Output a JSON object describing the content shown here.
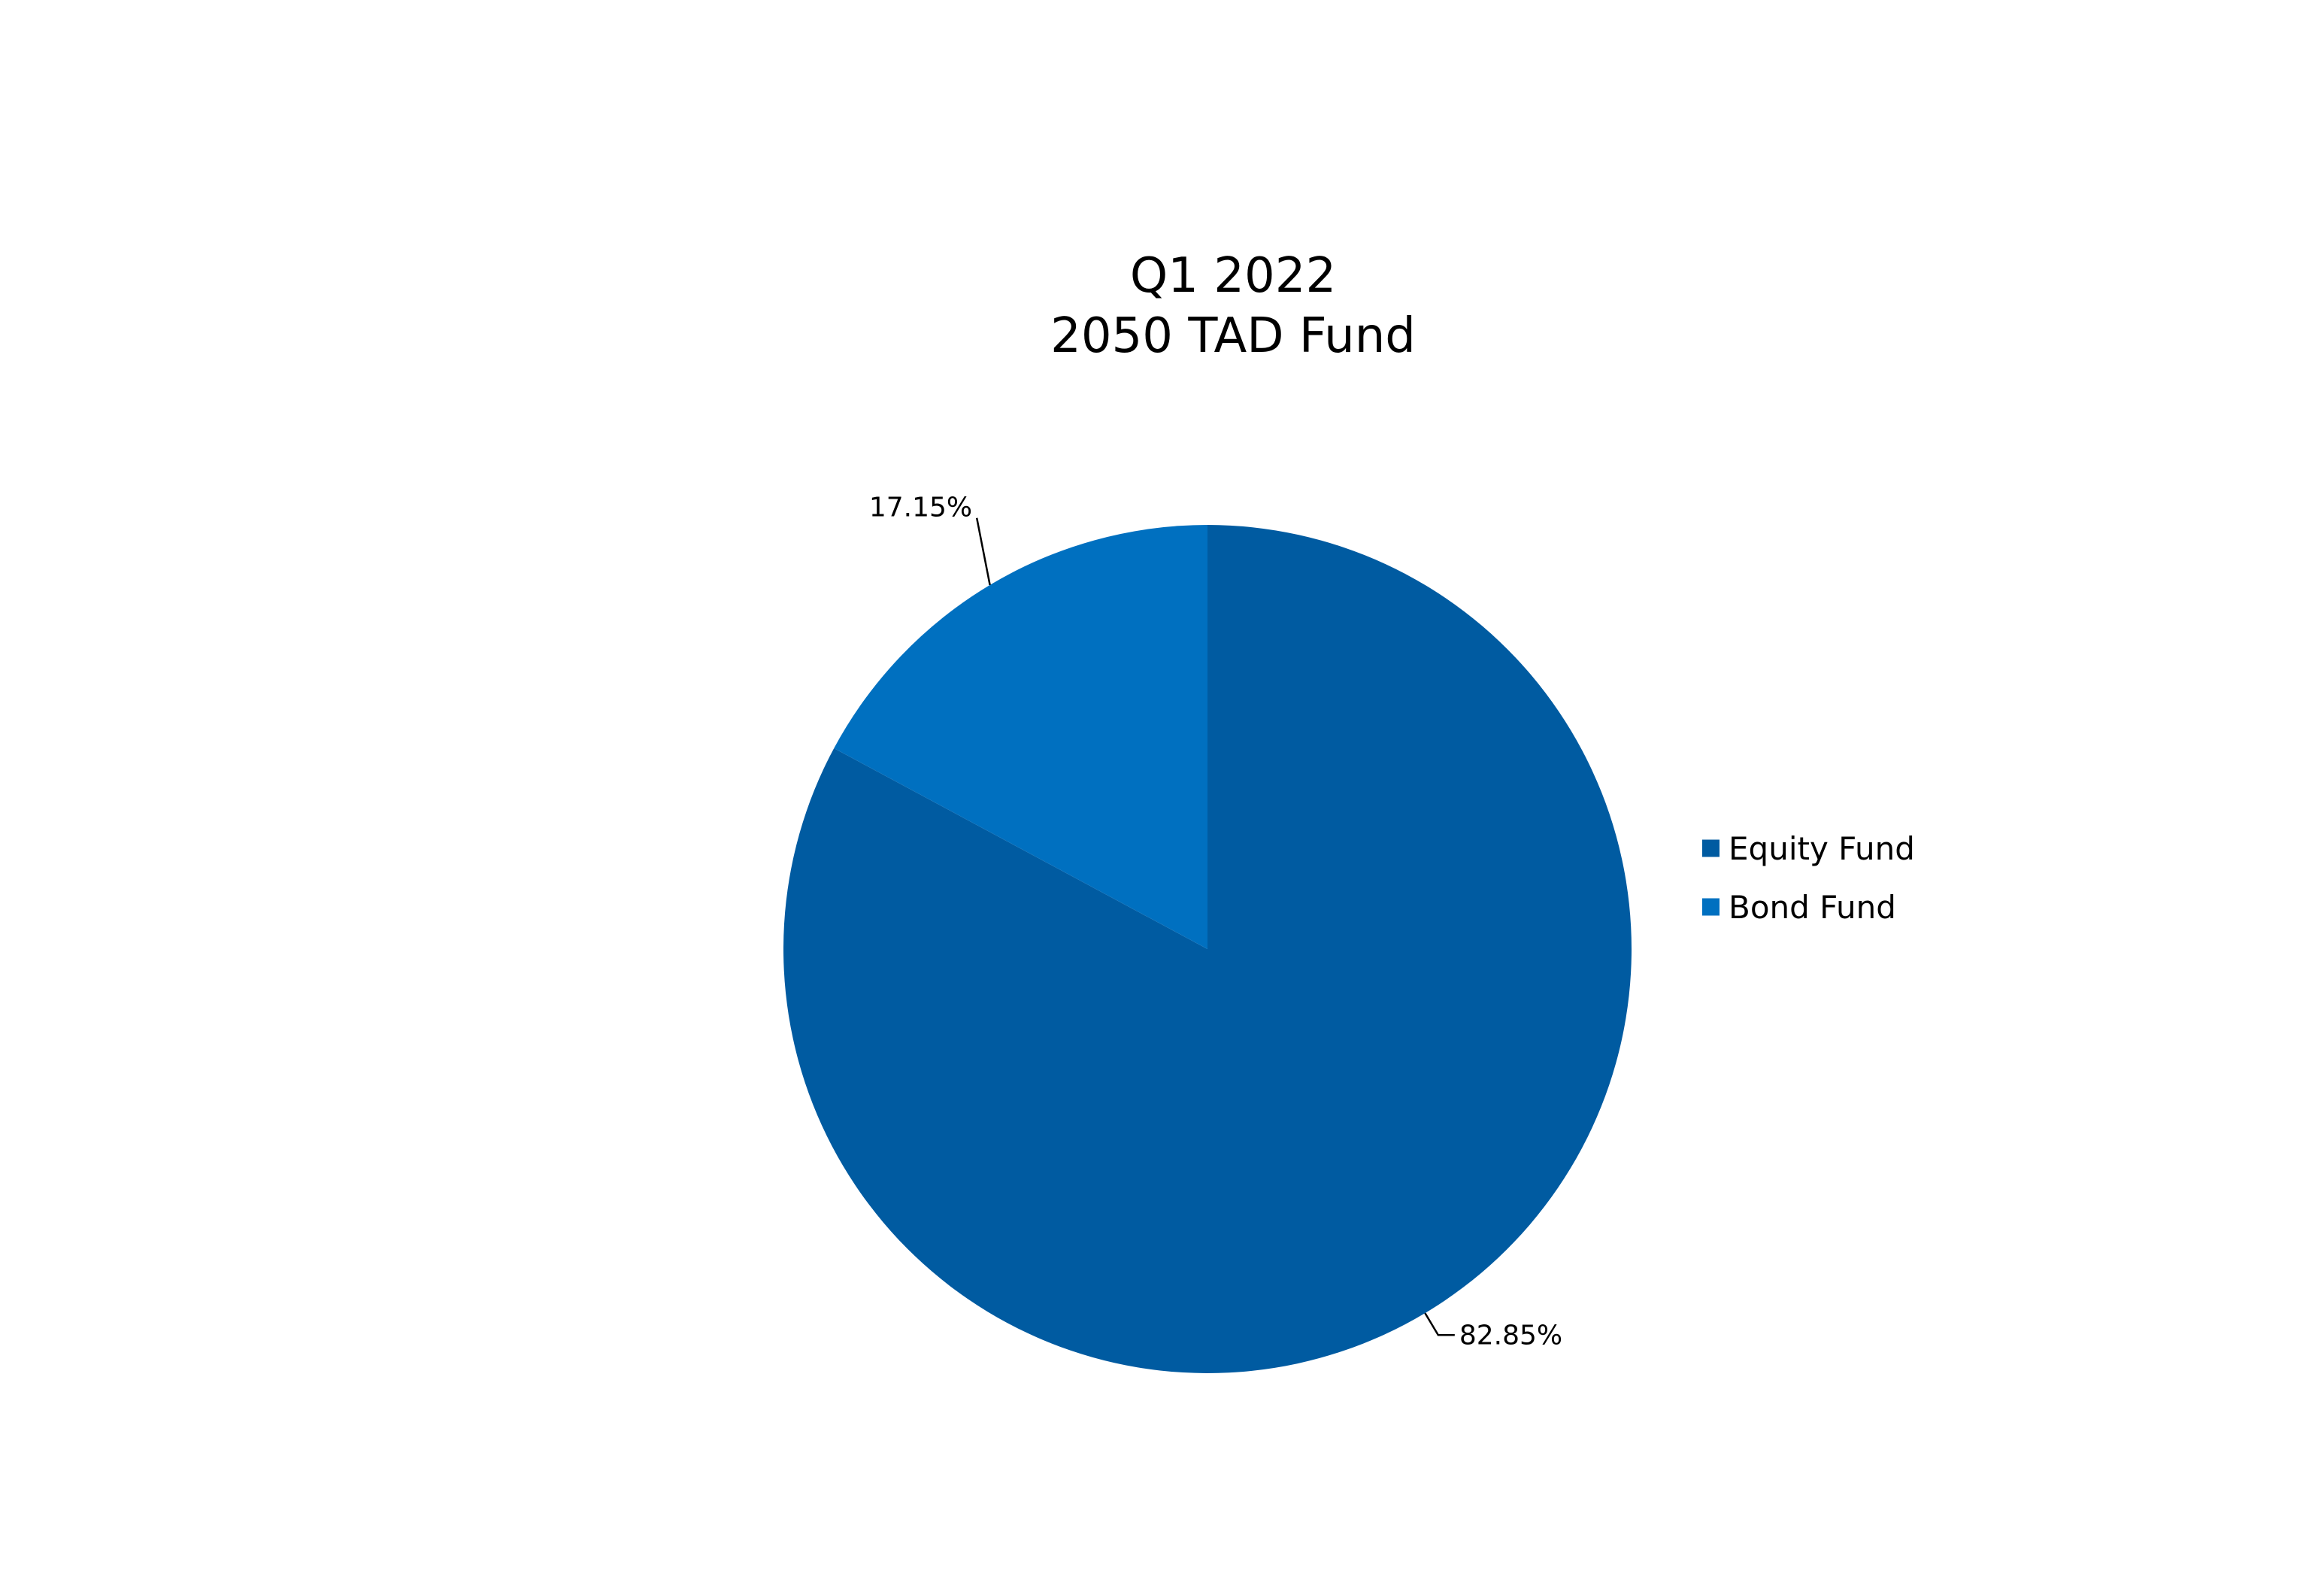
{
  "chart_data": {
    "type": "pie",
    "title": [
      "Q1 2022",
      "2050 TAD Fund"
    ],
    "series": [
      {
        "name": "Equity Fund",
        "value": 82.85,
        "label": "82.85%",
        "color": "#005ba1"
      },
      {
        "name": "Bond Fund",
        "value": 17.15,
        "label": "17.15%",
        "color": "#0070c0"
      }
    ],
    "legend_position": "right",
    "start_angle": "12 o'clock",
    "direction": "clockwise"
  }
}
